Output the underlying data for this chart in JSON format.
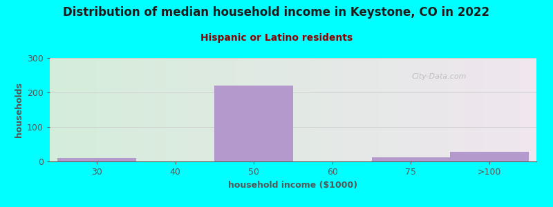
{
  "title": "Distribution of median household income in Keystone, CO in 2022",
  "subtitle": "Hispanic or Latino residents",
  "xlabel": "household income ($1000)",
  "ylabel": "households",
  "background_color": "#00FFFF",
  "bar_color": "#b399cc",
  "gradient_left": "#d4edda",
  "gradient_right": "#f0e6ef",
  "bar_heights": [
    10,
    0,
    220,
    0,
    12,
    28
  ],
  "bar_left_edges": [
    0,
    1,
    2,
    3,
    4,
    5
  ],
  "bar_right_edges": [
    1,
    2,
    3,
    4,
    5,
    6
  ],
  "xtick_labels": [
    "30",
    "40",
    "50",
    "60",
    "75",
    ">100"
  ],
  "xtick_positions": [
    0.5,
    1.5,
    2.5,
    3.5,
    4.5,
    5.5
  ],
  "ylim": [
    0,
    300
  ],
  "yticks": [
    0,
    100,
    200,
    300
  ],
  "xlim": [
    -0.1,
    6.1
  ],
  "title_fontsize": 12,
  "subtitle_fontsize": 10,
  "axis_label_fontsize": 9,
  "title_color": "#1a1a1a",
  "subtitle_color": "#8B0000",
  "axis_label_color": "#555555",
  "tick_color": "#555555",
  "watermark_text": "City-Data.com",
  "grid_color": "#cccccc"
}
